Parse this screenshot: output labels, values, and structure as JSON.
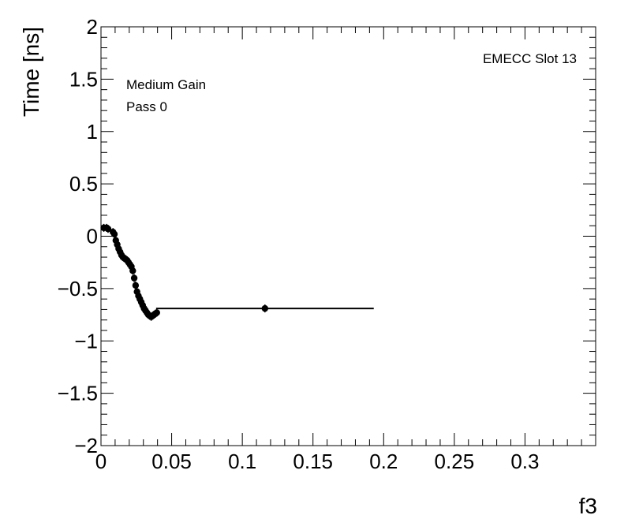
{
  "chart_data": {
    "type": "scatter",
    "title": "",
    "xlabel": "f3",
    "ylabel": "Time [ns]",
    "xlim": [
      0,
      0.35
    ],
    "ylim": [
      -2,
      2
    ],
    "x_ticks": [
      0,
      0.05,
      0.1,
      0.15,
      0.2,
      0.25,
      0.3
    ],
    "x_tick_labels": [
      "0",
      "0.05",
      "0.1",
      "0.15",
      "0.2",
      "0.25",
      "0.3"
    ],
    "y_ticks": [
      -2,
      -1.5,
      -1,
      -0.5,
      0,
      0.5,
      1,
      1.5,
      2
    ],
    "y_tick_labels": [
      "−2",
      "−1.5",
      "−1",
      "−0.5",
      "0",
      "0.5",
      "1",
      "1.5",
      "2"
    ],
    "grid": false,
    "annotations": {
      "gain": "Medium Gain",
      "pass": "Pass 0",
      "slot": "EMECC Slot 13"
    },
    "series": [
      {
        "points": [
          {
            "x": 0.002,
            "y": 0.08,
            "xerr": 0.002
          },
          {
            "x": 0.004,
            "y": 0.08,
            "xerr": 0.001
          },
          {
            "x": 0.005,
            "y": 0.07,
            "xerr": 0.001
          },
          {
            "x": 0.0085,
            "y": 0.04,
            "xerr": 0.001
          },
          {
            "x": 0.0095,
            "y": 0.02,
            "xerr": 0.001
          },
          {
            "x": 0.0105,
            "y": -0.04,
            "xerr": 0.001
          },
          {
            "x": 0.0115,
            "y": -0.08,
            "xerr": 0.001
          },
          {
            "x": 0.0125,
            "y": -0.12,
            "xerr": 0.001
          },
          {
            "x": 0.0135,
            "y": -0.15,
            "xerr": 0.001
          },
          {
            "x": 0.0145,
            "y": -0.18,
            "xerr": 0.001
          },
          {
            "x": 0.0155,
            "y": -0.2,
            "xerr": 0.001
          },
          {
            "x": 0.0165,
            "y": -0.21,
            "xerr": 0.001
          },
          {
            "x": 0.0175,
            "y": -0.22,
            "xerr": 0.001
          },
          {
            "x": 0.0185,
            "y": -0.23,
            "xerr": 0.001
          },
          {
            "x": 0.0195,
            "y": -0.25,
            "xerr": 0.001
          },
          {
            "x": 0.0205,
            "y": -0.27,
            "xerr": 0.001
          },
          {
            "x": 0.0215,
            "y": -0.29,
            "xerr": 0.001
          },
          {
            "x": 0.0225,
            "y": -0.33,
            "xerr": 0.001
          },
          {
            "x": 0.0235,
            "y": -0.4,
            "xerr": 0.001
          },
          {
            "x": 0.0245,
            "y": -0.47,
            "xerr": 0.001
          },
          {
            "x": 0.0255,
            "y": -0.53,
            "xerr": 0.001
          },
          {
            "x": 0.0265,
            "y": -0.57,
            "xerr": 0.001
          },
          {
            "x": 0.0275,
            "y": -0.6,
            "xerr": 0.001
          },
          {
            "x": 0.0285,
            "y": -0.63,
            "xerr": 0.001
          },
          {
            "x": 0.0295,
            "y": -0.66,
            "xerr": 0.001
          },
          {
            "x": 0.0305,
            "y": -0.69,
            "xerr": 0.001
          },
          {
            "x": 0.0315,
            "y": -0.71,
            "xerr": 0.001
          },
          {
            "x": 0.0325,
            "y": -0.73,
            "xerr": 0.001
          },
          {
            "x": 0.0335,
            "y": -0.75,
            "xerr": 0.001
          },
          {
            "x": 0.0345,
            "y": -0.76,
            "xerr": 0.001
          },
          {
            "x": 0.0355,
            "y": -0.77,
            "xerr": 0.001
          },
          {
            "x": 0.0365,
            "y": -0.76,
            "xerr": 0.001
          },
          {
            "x": 0.0375,
            "y": -0.75,
            "xerr": 0.001
          },
          {
            "x": 0.0385,
            "y": -0.74,
            "xerr": 0.001
          },
          {
            "x": 0.0395,
            "y": -0.73,
            "xerr": 0.001
          },
          {
            "x": 0.116,
            "y": -0.69,
            "xerr": 0.077
          }
        ]
      }
    ]
  }
}
